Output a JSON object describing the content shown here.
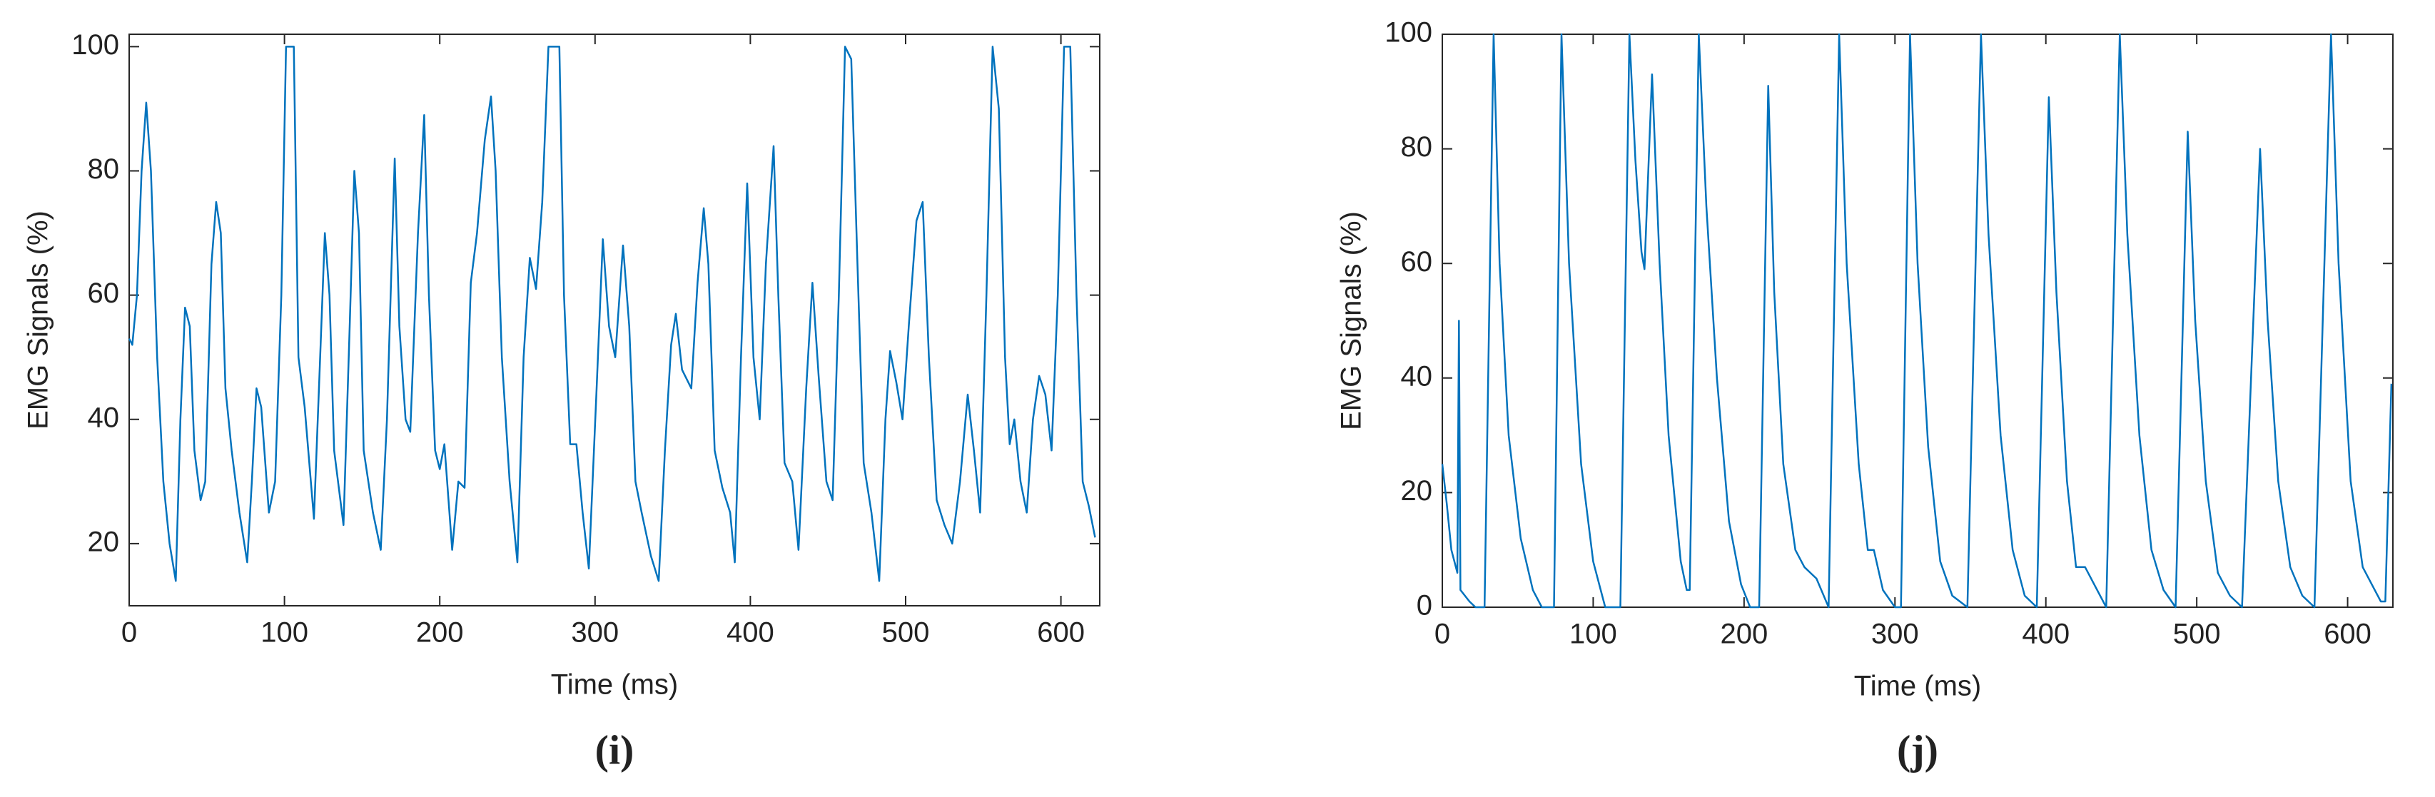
{
  "chart_data": [
    {
      "type": "line",
      "caption": "(i)",
      "xlabel": "Time (ms)",
      "ylabel": "EMG Signals (%)",
      "color": "#0072bd",
      "xlim": [
        0,
        625
      ],
      "ylim": [
        10,
        102
      ],
      "xticks": [
        0,
        100,
        200,
        300,
        400,
        500,
        600
      ],
      "yticks": [
        20,
        40,
        60,
        80,
        100
      ],
      "x": [
        0,
        2,
        5,
        8,
        11,
        14,
        18,
        22,
        26,
        30,
        33,
        36,
        39,
        42,
        46,
        49,
        53,
        56,
        59,
        62,
        66,
        71,
        76,
        79,
        82,
        85,
        90,
        94,
        98,
        101,
        106,
        109,
        113,
        119,
        123,
        126,
        129,
        132,
        138,
        142,
        145,
        148,
        151,
        157,
        162,
        166,
        171,
        174,
        178,
        181,
        186,
        190,
        193,
        197,
        200,
        203,
        208,
        212,
        216,
        220,
        224,
        229,
        233,
        236,
        240,
        245,
        250,
        254,
        258,
        262,
        266,
        270,
        277,
        280,
        284,
        288,
        292,
        296,
        301,
        305,
        309,
        313,
        318,
        322,
        326,
        330,
        336,
        341,
        345,
        349,
        352,
        356,
        362,
        366,
        370,
        373,
        377,
        382,
        387,
        390,
        394,
        398,
        402,
        406,
        410,
        415,
        418,
        422,
        427,
        431,
        436,
        440,
        444,
        449,
        453,
        457,
        461,
        465,
        469,
        473,
        478,
        483,
        487,
        490,
        494,
        498,
        502,
        507,
        511,
        515,
        520,
        525,
        530,
        535,
        540,
        544,
        548,
        552,
        556,
        560,
        564,
        567,
        570,
        574,
        578,
        582,
        586,
        590,
        594,
        598,
        602,
        606,
        610,
        614,
        618,
        622
      ],
      "values": [
        53,
        52,
        60,
        80,
        91,
        80,
        50,
        30,
        20,
        14,
        40,
        58,
        55,
        35,
        27,
        30,
        65,
        75,
        70,
        45,
        35,
        25,
        17,
        30,
        45,
        42,
        25,
        30,
        60,
        100,
        100,
        50,
        42,
        24,
        50,
        70,
        60,
        35,
        23,
        55,
        80,
        70,
        35,
        25,
        19,
        40,
        82,
        55,
        40,
        38,
        70,
        89,
        60,
        35,
        32,
        36,
        19,
        30,
        29,
        62,
        70,
        85,
        92,
        80,
        50,
        30,
        17,
        50,
        66,
        61,
        75,
        100,
        100,
        60,
        36,
        36,
        25,
        16,
        45,
        69,
        55,
        50,
        68,
        55,
        30,
        25,
        18,
        14,
        35,
        52,
        57,
        48,
        45,
        62,
        74,
        65,
        35,
        29,
        25,
        17,
        50,
        78,
        50,
        40,
        65,
        84,
        60,
        33,
        30,
        19,
        45,
        62,
        47,
        30,
        27,
        60,
        100,
        98,
        65,
        33,
        25,
        14,
        40,
        51,
        46,
        40,
        55,
        72,
        75,
        50,
        27,
        23,
        20,
        30,
        44,
        35,
        25,
        60,
        100,
        90,
        50,
        36,
        40,
        30,
        25,
        40,
        47,
        44,
        35,
        60,
        100,
        100,
        60,
        30,
        26,
        21
      ]
    },
    {
      "type": "line",
      "caption": "(j)",
      "xlabel": "Time (ms)",
      "ylabel": "EMG Signals (%)",
      "color": "#0072bd",
      "xlim": [
        0,
        630
      ],
      "ylim": [
        0,
        100
      ],
      "xticks": [
        0,
        100,
        200,
        300,
        400,
        500,
        600
      ],
      "yticks": [
        0,
        20,
        40,
        60,
        80,
        100
      ],
      "x": [
        0,
        3,
        6,
        10,
        11,
        12,
        18,
        22,
        28,
        34,
        38,
        44,
        52,
        60,
        66,
        74,
        79,
        84,
        92,
        100,
        108,
        118,
        124,
        128,
        132,
        134,
        139,
        144,
        150,
        158,
        162,
        164,
        170,
        175,
        182,
        190,
        198,
        204,
        210,
        216,
        220,
        226,
        234,
        240,
        248,
        256,
        263,
        268,
        276,
        282,
        286,
        292,
        300,
        304,
        310,
        315,
        322,
        330,
        338,
        348,
        357,
        362,
        370,
        378,
        386,
        394,
        402,
        407,
        414,
        420,
        426,
        432,
        440,
        449,
        454,
        462,
        470,
        478,
        486,
        494,
        499,
        506,
        514,
        522,
        530,
        542,
        547,
        554,
        562,
        570,
        578,
        589,
        594,
        602,
        610,
        618,
        622,
        625,
        629
      ],
      "values": [
        25,
        18,
        10,
        6,
        50,
        3,
        1,
        0,
        0,
        100,
        60,
        30,
        12,
        3,
        0,
        0,
        100,
        60,
        25,
        8,
        0,
        0,
        100,
        78,
        62,
        59,
        93,
        60,
        30,
        8,
        3,
        3,
        100,
        70,
        40,
        15,
        4,
        0,
        0,
        91,
        55,
        25,
        10,
        7,
        5,
        0,
        100,
        60,
        25,
        10,
        10,
        3,
        0,
        0,
        100,
        60,
        28,
        8,
        2,
        0,
        100,
        65,
        30,
        10,
        2,
        0,
        89,
        55,
        22,
        7,
        7,
        4,
        0,
        100,
        65,
        30,
        10,
        3,
        0,
        83,
        50,
        22,
        6,
        2,
        0,
        80,
        50,
        22,
        7,
        2,
        0,
        100,
        60,
        22,
        7,
        3,
        1,
        1,
        39
      ]
    }
  ]
}
